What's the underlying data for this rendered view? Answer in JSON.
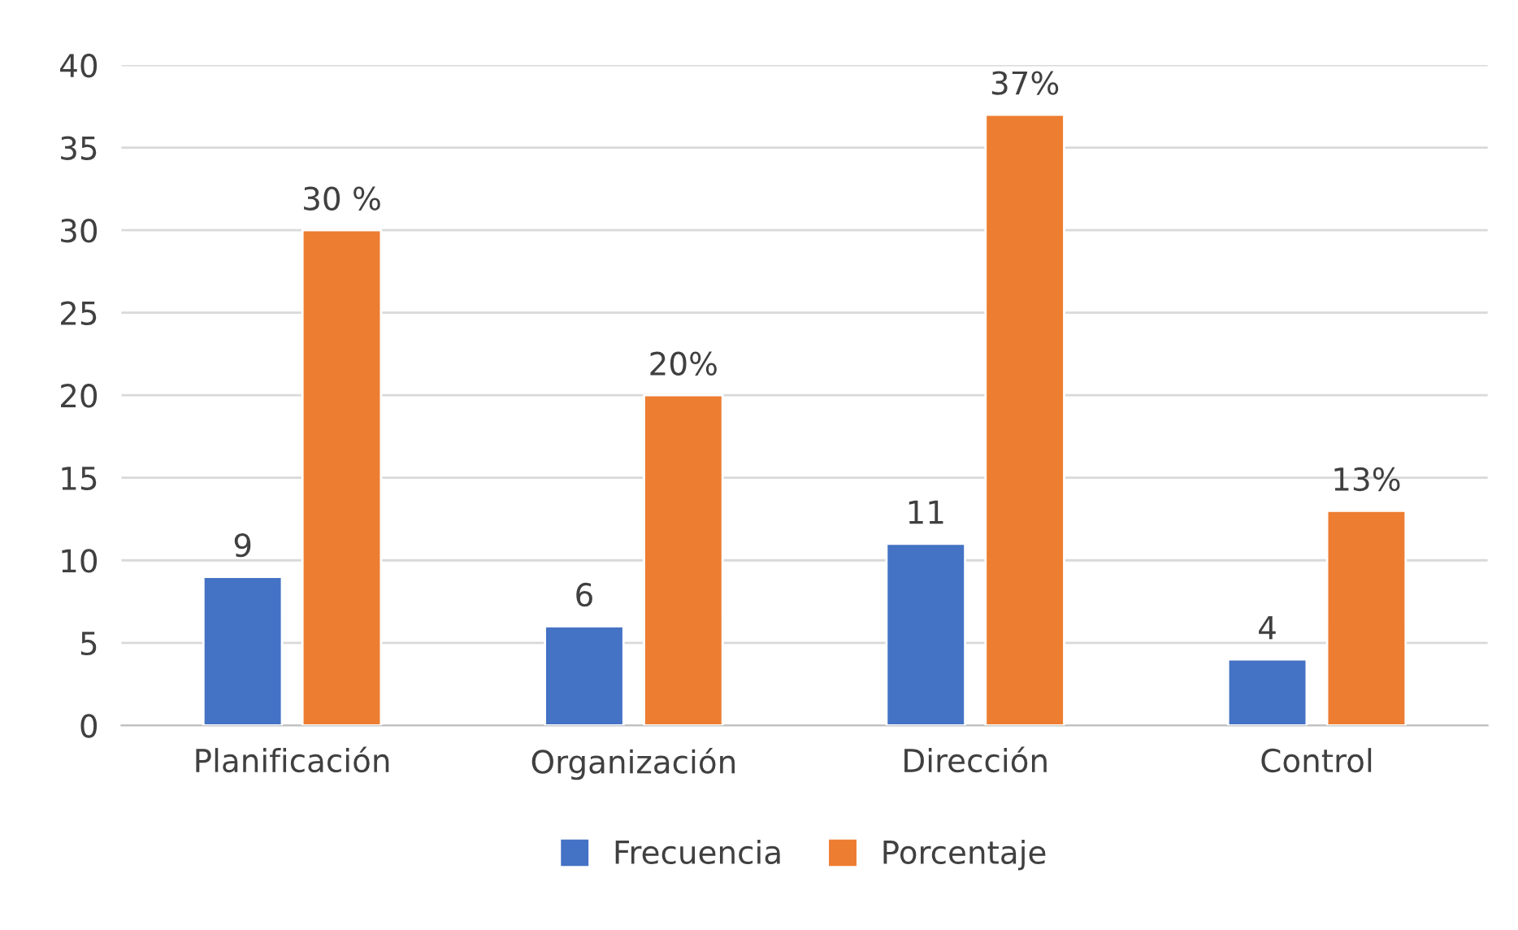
{
  "chart_data": {
    "type": "bar",
    "categories": [
      "Planificación",
      "Organización",
      "Dirección",
      "Control"
    ],
    "series": [
      {
        "name": "Frecuencia",
        "color": "#4472c4",
        "values": [
          9,
          6,
          11,
          4
        ],
        "value_labels": [
          "9",
          "6",
          "11",
          "4"
        ]
      },
      {
        "name": "Porcentaje",
        "color": "#ed7d31",
        "values": [
          30,
          20,
          37,
          13
        ],
        "value_labels": [
          "30 %",
          "20%",
          "37%",
          "13%"
        ]
      }
    ],
    "ylim": [
      0,
      40
    ],
    "yticks": [
      0,
      5,
      10,
      15,
      20,
      25,
      30,
      35,
      40
    ],
    "grid": "y",
    "legend": "bottom"
  }
}
